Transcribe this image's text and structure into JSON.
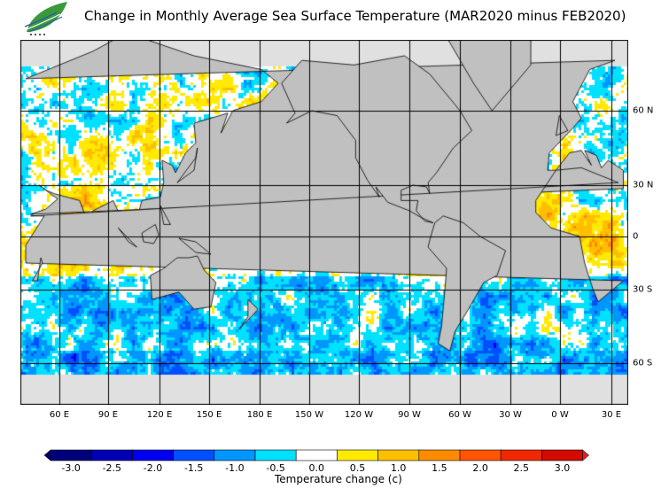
{
  "title": "Change in Monthly Average Sea Surface Temperature (MAR2020 minus FEB2020)",
  "map": {
    "lon_labels": [
      "60 E",
      "90 E",
      "120 E",
      "150 E",
      "180 E",
      "150 W",
      "120 W",
      "90 W",
      "60 W",
      "30 W",
      "0 W",
      "30 E"
    ],
    "lat_labels": [
      "60 N",
      "30 N",
      "0",
      "30 S",
      "60 S"
    ],
    "land_color": "#c0c0c0",
    "ice_color": "#e0e0e0"
  },
  "colorbar": {
    "labels": [
      "-3.0",
      "-2.5",
      "-2.0",
      "-1.5",
      "-1.0",
      "-0.5",
      "0.0",
      "0.5",
      "1.0",
      "1.5",
      "2.0",
      "2.5",
      "3.0"
    ],
    "colors": [
      "#00007a",
      "#0000b4",
      "#0000f0",
      "#0050ff",
      "#0096ff",
      "#00e0ff",
      "#ffffff",
      "#ffea00",
      "#ffbe00",
      "#ff8c00",
      "#ff5500",
      "#f02800",
      "#d20a00"
    ],
    "low_arrow_color": "#000070",
    "high_arrow_color": "#e02020",
    "unit_label": "Temperature change  (c)"
  }
}
